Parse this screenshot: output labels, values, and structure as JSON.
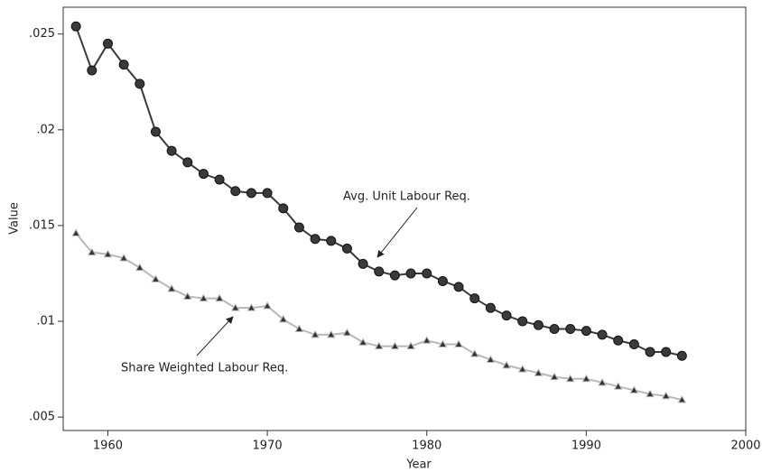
{
  "chart_data": {
    "type": "line",
    "xlabel": "Year",
    "ylabel": "Value",
    "x": [
      1958,
      1959,
      1960,
      1961,
      1962,
      1963,
      1964,
      1965,
      1966,
      1967,
      1968,
      1969,
      1970,
      1971,
      1972,
      1973,
      1974,
      1975,
      1976,
      1977,
      1978,
      1979,
      1980,
      1981,
      1982,
      1983,
      1984,
      1985,
      1986,
      1987,
      1988,
      1989,
      1990,
      1991,
      1992,
      1993,
      1994,
      1995,
      1996
    ],
    "series": [
      {
        "name": "Avg. Unit Labour Req.",
        "color": "#3a3a3a",
        "marker": "circle",
        "values": [
          0.0254,
          0.0231,
          0.0245,
          0.0234,
          0.0224,
          0.0199,
          0.0189,
          0.0183,
          0.0177,
          0.0174,
          0.0168,
          0.0167,
          0.0167,
          0.0159,
          0.0149,
          0.0143,
          0.0142,
          0.0138,
          0.013,
          0.0126,
          0.0124,
          0.0125,
          0.0125,
          0.0121,
          0.0118,
          0.0112,
          0.0107,
          0.0103,
          0.01,
          0.0098,
          0.0096,
          0.0096,
          0.0095,
          0.0093,
          0.009,
          0.0088,
          0.0084,
          0.0084,
          0.0082
        ]
      },
      {
        "name": "Share Weighted Labour Req.",
        "color": "#b8b8b8",
        "marker": "triangle",
        "values": [
          0.0146,
          0.0136,
          0.0135,
          0.0133,
          0.0128,
          0.0122,
          0.0117,
          0.0113,
          0.0112,
          0.0112,
          0.0107,
          0.0107,
          0.0108,
          0.0101,
          0.0096,
          0.0093,
          0.0093,
          0.0094,
          0.0089,
          0.0087,
          0.0087,
          0.0087,
          0.009,
          0.0088,
          0.0088,
          0.0083,
          0.008,
          0.0077,
          0.0075,
          0.0073,
          0.0071,
          0.007,
          0.007,
          0.0068,
          0.0066,
          0.0064,
          0.0062,
          0.0061,
          0.0059
        ]
      }
    ],
    "xlim": [
      1957.2,
      2000
    ],
    "xticks": [
      1960,
      1970,
      1980,
      1990,
      2000
    ],
    "ylim": [
      0.0043,
      0.0264
    ],
    "yticks": [
      {
        "value": 0.005,
        "label": ".005"
      },
      {
        "value": 0.01,
        "label": ".01"
      },
      {
        "value": 0.015,
        "label": ".015"
      },
      {
        "value": 0.02,
        "label": ".02"
      },
      {
        "value": 0.025,
        "label": ".025"
      }
    ],
    "grid": false
  }
}
